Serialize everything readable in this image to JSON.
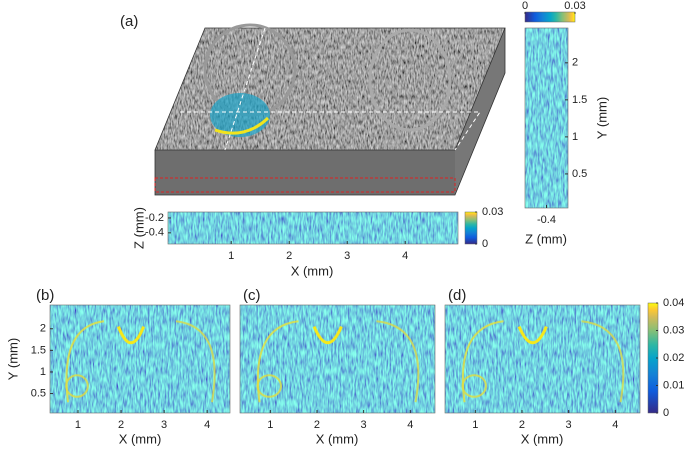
{
  "chart_data": [
    {
      "type": "volume",
      "label": "(a)"
    },
    {
      "type": "heatmap",
      "xlabel": "X (mm)",
      "ylabel": "Z (mm)",
      "xlim": [
        -0.09,
        4.91
      ],
      "xticks": [
        1,
        2,
        3,
        4
      ],
      "ylim": [
        -0.55,
        -0.12
      ],
      "yticks": [
        -0.4,
        -0.2
      ],
      "colorbar": {
        "lim": [
          0,
          0.03
        ],
        "ticks": [
          0,
          0.03
        ]
      }
    },
    {
      "type": "heatmap",
      "xlabel": "Z (mm)",
      "ylabel": "Y (mm)",
      "xlim": [
        -0.62,
        -0.18
      ],
      "xticks": [
        -0.4
      ],
      "ylim": [
        0.04,
        2.47
      ],
      "yticks": [
        0.5,
        1,
        1.5,
        2
      ],
      "colorbar": {
        "lim": [
          0,
          0.03
        ],
        "ticks": [
          0,
          0.03
        ]
      }
    },
    {
      "type": "heatmap",
      "label": "(b)",
      "xlabel": "X (mm)",
      "ylabel": "Y (mm)",
      "xlim": [
        0.35,
        4.53
      ],
      "xticks": [
        1,
        2,
        3,
        4
      ],
      "ylim": [
        0.05,
        2.55
      ],
      "yticks": [
        0.5,
        1,
        1.5,
        2
      ]
    },
    {
      "type": "heatmap",
      "label": "(c)",
      "xlabel": "X (mm)",
      "xlim": [
        0.35,
        4.53
      ],
      "xticks": [
        1,
        2,
        3,
        4
      ]
    },
    {
      "type": "heatmap",
      "label": "(d)",
      "xlabel": "X (mm)",
      "xlim": [
        0.35,
        4.53
      ],
      "xticks": [
        1,
        2,
        3,
        4
      ],
      "colorbar": {
        "lim": [
          0,
          0.04
        ],
        "ticks": [
          0,
          0.01,
          0.02,
          0.03,
          0.04
        ]
      }
    }
  ]
}
